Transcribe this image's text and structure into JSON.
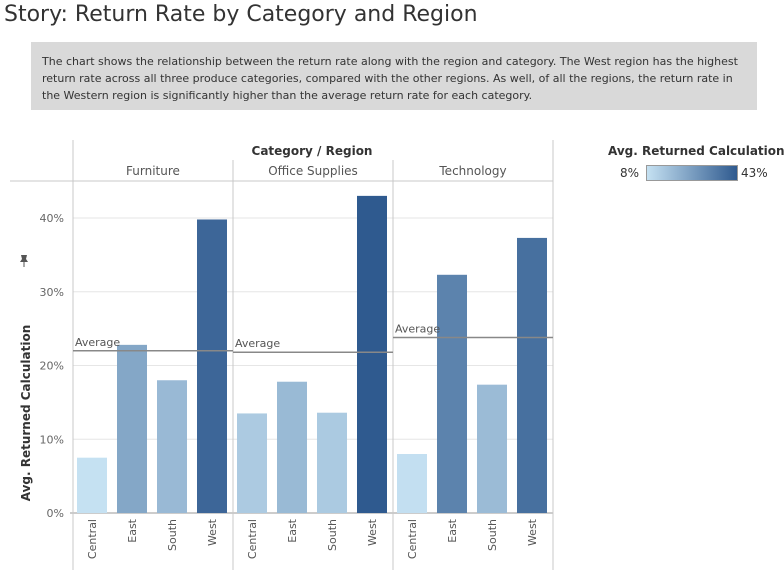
{
  "story": {
    "title": "Story: Return Rate by Category and Region",
    "caption": "The chart shows the relationship between the return rate along with the region and category.  The West region has the highest return rate across all three produce categories, compared with the other regions.  As well, of all the regions, the return rate in the Western region is significantly higher than the average return rate for each category."
  },
  "legend": {
    "title": "Avg. Returned Calculation",
    "min_label": "8%",
    "max_label": "43%",
    "color_low": "#c5e1f2",
    "color_high": "#2f5a8f"
  },
  "chart_data": {
    "type": "bar",
    "title": "",
    "column_header": "Category / Region",
    "ylabel": "Avg. Returned Calculation",
    "ylim": [
      0,
      45
    ],
    "yticks": [
      0,
      10,
      20,
      30,
      40
    ],
    "ytick_labels": [
      "0%",
      "10%",
      "20%",
      "30%",
      "40%"
    ],
    "grid": true,
    "panels": [
      {
        "category": "Furniture",
        "regions": [
          "Central",
          "East",
          "South",
          "West"
        ],
        "values": [
          7.5,
          22.8,
          18.0,
          39.8
        ],
        "average": 22.0,
        "average_label": "Average"
      },
      {
        "category": "Office Supplies",
        "regions": [
          "Central",
          "East",
          "South",
          "West"
        ],
        "values": [
          13.5,
          17.8,
          13.6,
          43.0
        ],
        "average": 21.8,
        "average_label": "Average"
      },
      {
        "category": "Technology",
        "regions": [
          "Central",
          "East",
          "South",
          "West"
        ],
        "values": [
          8.0,
          32.3,
          17.4,
          37.3
        ],
        "average": 23.8,
        "average_label": "Average"
      }
    ]
  }
}
